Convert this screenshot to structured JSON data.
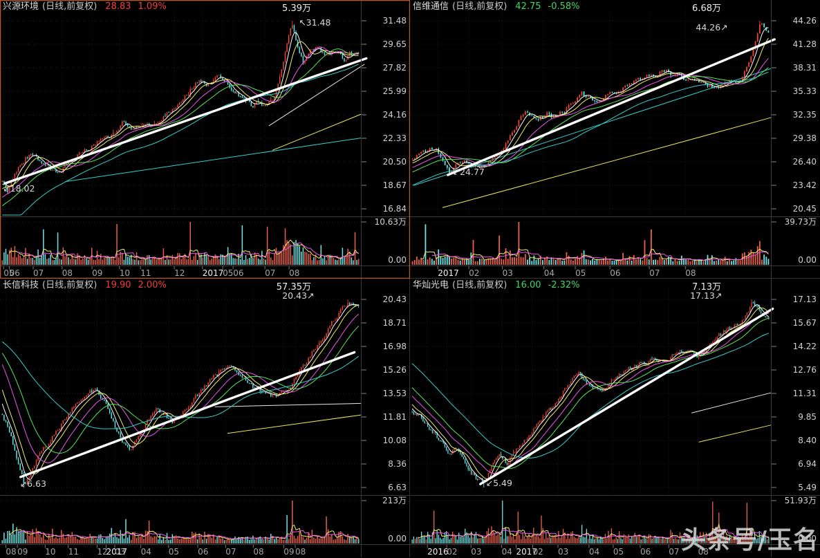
{
  "watermark": {
    "text": "头条号/玉名"
  },
  "colors": {
    "up": "#ef4433",
    "down": "#58e5e5",
    "vol_up": "#e8604a",
    "vol_down": "#6fe3e3",
    "ma5": "#ffffff",
    "ma10": "#f2ef6a",
    "ma20": "#ee55ee",
    "ma30": "#59e859",
    "ma60": "#35cfcf",
    "trend": "#ffffff",
    "grid": "#242424",
    "divider": "#3a3a3a",
    "tick": "#888888",
    "axis_text": "#d2d2d2",
    "month_text": "#a6a6a6",
    "year_text": "#f2f2f2",
    "up_text": "#f63c3c",
    "down_text": "#3fd864",
    "name_text": "#dddddd",
    "selected_border": "#b45a28",
    "panel_border": "#333333",
    "annotation_text": "#d8d8d8",
    "watermark_text": "#d9d9d9"
  },
  "chart_data": [
    {
      "type": "candlestick",
      "name": "兴源环境",
      "mode": "(日线,前复权)",
      "last": "28.83",
      "change": "1.09%",
      "direction": "up",
      "vol_label": "5.39万",
      "selected": true,
      "y_ticks": [
        "31.48",
        "29.65",
        "27.82",
        "25.99",
        "24.16",
        "22.33",
        "20.50",
        "18.67",
        "16.84"
      ],
      "vol_ticks": [
        "10.63万",
        "0.00"
      ],
      "months": [
        [
          "05",
          0.01
        ],
        [
          "06",
          0.026
        ],
        [
          "07",
          0.092
        ],
        [
          "08",
          0.172
        ],
        [
          "09",
          0.255
        ],
        [
          "10",
          0.331
        ],
        [
          "11",
          0.389
        ],
        [
          "12",
          0.483
        ],
        [
          "2017",
          0.561
        ],
        [
          "05",
          0.617
        ],
        [
          "06",
          0.646
        ],
        [
          "07",
          0.734
        ],
        [
          "08",
          0.801
        ]
      ],
      "price_path": [
        [
          0,
          19.0
        ],
        [
          0.015,
          18.3
        ],
        [
          0.04,
          19.8
        ],
        [
          0.065,
          20.8
        ],
        [
          0.09,
          21.1
        ],
        [
          0.115,
          20.3
        ],
        [
          0.14,
          19.9
        ],
        [
          0.165,
          19.8
        ],
        [
          0.19,
          20.5
        ],
        [
          0.215,
          21.1
        ],
        [
          0.24,
          21.5
        ],
        [
          0.265,
          21.9
        ],
        [
          0.29,
          22.3
        ],
        [
          0.315,
          22.6
        ],
        [
          0.34,
          23.7
        ],
        [
          0.36,
          23.2
        ],
        [
          0.385,
          23.1
        ],
        [
          0.41,
          23.4
        ],
        [
          0.44,
          23.8
        ],
        [
          0.47,
          24.4
        ],
        [
          0.5,
          25.2
        ],
        [
          0.53,
          26.2
        ],
        [
          0.55,
          26.8
        ],
        [
          0.575,
          26.5
        ],
        [
          0.6,
          27.2
        ],
        [
          0.625,
          26.9
        ],
        [
          0.65,
          26.1
        ],
        [
          0.675,
          25.4
        ],
        [
          0.7,
          24.9
        ],
        [
          0.72,
          25.2
        ],
        [
          0.74,
          24.7
        ],
        [
          0.765,
          25.7
        ],
        [
          0.785,
          27.8
        ],
        [
          0.8,
          30.0
        ],
        [
          0.813,
          31.1
        ],
        [
          0.828,
          29.7
        ],
        [
          0.845,
          28.2
        ],
        [
          0.865,
          29.1
        ],
        [
          0.885,
          29.5
        ],
        [
          0.905,
          28.6
        ],
        [
          0.925,
          29.0
        ],
        [
          0.945,
          28.9
        ],
        [
          0.96,
          28.4
        ],
        [
          0.975,
          28.9
        ],
        [
          1,
          28.83
        ]
      ],
      "extremes": {
        "high": [
          0.815,
          31.48
        ],
        "low": [
          0.013,
          18.02
        ]
      },
      "annotations": [
        {
          "t": "↖31.48",
          "x": 0.828,
          "y": 37
        },
        {
          "t": "↙18.02",
          "x": 0.008,
          "y": 277
        }
      ],
      "trend": [
        0.015,
        18.83,
        1.015,
        28.55
      ],
      "aux": [
        [
          "#35cfcf",
          0.18,
          18.95,
          1.0,
          22.35
        ],
        [
          "#e8e8e8",
          0.745,
          23.3,
          1.01,
          28.1
        ],
        [
          "#e8e860",
          0.755,
          21.4,
          1.0,
          24.2
        ]
      ]
    },
    {
      "type": "candlestick",
      "name": "信维通信",
      "mode": "(日线,前复权)",
      "last": "42.75",
      "change": "-0.58%",
      "direction": "down",
      "vol_label": "6.68万",
      "selected": false,
      "y_ticks": [
        "44.26",
        "41.28",
        "38.31",
        "35.33",
        "32.35",
        "29.38",
        "26.40",
        "23.42",
        "20.45"
      ],
      "vol_ticks": [
        "39.73万",
        "0.00"
      ],
      "months": [
        [
          "2017",
          0.077
        ],
        [
          "02",
          0.163
        ],
        [
          "03",
          0.256
        ],
        [
          "04",
          0.371
        ],
        [
          "05",
          0.458
        ],
        [
          "06",
          0.554
        ],
        [
          "07",
          0.663
        ],
        [
          "08",
          0.763
        ]
      ],
      "price_path": [
        [
          0,
          27.0
        ],
        [
          0.02,
          27.4
        ],
        [
          0.045,
          27.9
        ],
        [
          0.067,
          28.2
        ],
        [
          0.085,
          26.6
        ],
        [
          0.105,
          25.1
        ],
        [
          0.125,
          26.0
        ],
        [
          0.145,
          26.6
        ],
        [
          0.165,
          25.9
        ],
        [
          0.185,
          25.4
        ],
        [
          0.21,
          26.3
        ],
        [
          0.24,
          27.6
        ],
        [
          0.265,
          29.0
        ],
        [
          0.285,
          30.6
        ],
        [
          0.3,
          31.8
        ],
        [
          0.315,
          32.8
        ],
        [
          0.33,
          32.2
        ],
        [
          0.355,
          31.9
        ],
        [
          0.38,
          32.5
        ],
        [
          0.405,
          32.1
        ],
        [
          0.43,
          33.0
        ],
        [
          0.455,
          34.2
        ],
        [
          0.475,
          35.0
        ],
        [
          0.495,
          34.4
        ],
        [
          0.52,
          34.0
        ],
        [
          0.55,
          34.7
        ],
        [
          0.58,
          35.3
        ],
        [
          0.61,
          36.2
        ],
        [
          0.64,
          36.8
        ],
        [
          0.665,
          37.3
        ],
        [
          0.685,
          37.0
        ],
        [
          0.703,
          38.2
        ],
        [
          0.73,
          37.5
        ],
        [
          0.77,
          36.8
        ],
        [
          0.8,
          36.4
        ],
        [
          0.83,
          36.0
        ],
        [
          0.86,
          35.7
        ],
        [
          0.885,
          36.5
        ],
        [
          0.91,
          36.2
        ],
        [
          0.93,
          37.4
        ],
        [
          0.95,
          39.3
        ],
        [
          0.965,
          41.8
        ],
        [
          0.978,
          43.9
        ],
        [
          1,
          42.75
        ]
      ],
      "extremes": {
        "high": [
          0.975,
          44.26
        ],
        "low": [
          0.105,
          24.77
        ]
      },
      "annotations": [
        {
          "t": "44.26↗",
          "x": 0.792,
          "y": 44
        },
        {
          "t": "↙24.77",
          "x": 0.118,
          "y": 253
        }
      ],
      "trend": [
        0.105,
        24.74,
        1.01,
        41.9
      ],
      "aux": [
        [
          "#35cfcf",
          0.01,
          23.4,
          1.0,
          38.2
        ],
        [
          "#e8e860",
          0.09,
          20.6,
          1.0,
          32.0
        ]
      ]
    },
    {
      "type": "candlestick",
      "name": "长信科技",
      "mode": "(日线,前复权)",
      "last": "19.90",
      "change": "2.00%",
      "direction": "up",
      "vol_label": "57.35万",
      "selected": false,
      "y_ticks": [
        "20.43",
        "18.71",
        "16.98",
        "15.26",
        "13.53",
        "11.81",
        "10.08",
        "8.36",
        "6.63"
      ],
      "vol_ticks": [
        "213万",
        "0.00"
      ],
      "months": [
        [
          "08",
          0.016
        ],
        [
          "09",
          0.048
        ],
        [
          "10",
          0.125
        ],
        [
          "11",
          0.189
        ],
        [
          "12",
          0.269
        ],
        [
          "2017",
          0.294
        ],
        [
          "03",
          0.318
        ],
        [
          "04",
          0.39
        ],
        [
          "05",
          0.467
        ],
        [
          "06",
          0.548
        ],
        [
          "07",
          0.625
        ],
        [
          "08",
          0.702
        ],
        [
          "09",
          0.786
        ],
        [
          "08",
          0.818
        ]
      ],
      "price_path": [
        [
          0,
          12.0
        ],
        [
          0.02,
          10.8
        ],
        [
          0.042,
          8.8
        ],
        [
          0.062,
          6.9
        ],
        [
          0.08,
          7.7
        ],
        [
          0.1,
          8.9
        ],
        [
          0.12,
          9.5
        ],
        [
          0.15,
          10.7
        ],
        [
          0.18,
          11.8
        ],
        [
          0.21,
          12.7
        ],
        [
          0.24,
          13.4
        ],
        [
          0.262,
          13.9
        ],
        [
          0.283,
          13.1
        ],
        [
          0.3,
          12.1
        ],
        [
          0.32,
          10.9
        ],
        [
          0.342,
          9.8
        ],
        [
          0.362,
          9.4
        ],
        [
          0.385,
          10.5
        ],
        [
          0.41,
          11.6
        ],
        [
          0.435,
          12.3
        ],
        [
          0.458,
          11.9
        ],
        [
          0.478,
          11.4
        ],
        [
          0.5,
          11.9
        ],
        [
          0.53,
          12.9
        ],
        [
          0.558,
          13.7
        ],
        [
          0.585,
          14.5
        ],
        [
          0.612,
          15.1
        ],
        [
          0.632,
          15.6
        ],
        [
          0.655,
          15.1
        ],
        [
          0.678,
          14.6
        ],
        [
          0.7,
          14.1
        ],
        [
          0.725,
          13.7
        ],
        [
          0.75,
          13.3
        ],
        [
          0.775,
          13.3
        ],
        [
          0.8,
          13.9
        ],
        [
          0.825,
          14.7
        ],
        [
          0.85,
          15.7
        ],
        [
          0.875,
          16.7
        ],
        [
          0.9,
          17.7
        ],
        [
          0.925,
          18.7
        ],
        [
          0.95,
          19.6
        ],
        [
          0.968,
          20.2
        ],
        [
          0.982,
          20.0
        ],
        [
          1,
          19.9
        ]
      ],
      "extremes": {
        "high": [
          0.968,
          20.43
        ],
        "low": [
          0.062,
          6.63
        ]
      },
      "annotations": [
        {
          "t": "20.43↗",
          "x": 0.782,
          "y": 29
        },
        {
          "t": "↙6.63",
          "x": 0.055,
          "y": 301
        }
      ],
      "trend": [
        0.057,
        7.4,
        0.982,
        16.55
      ],
      "aux": [
        [
          "#e8e8e8",
          0.595,
          12.55,
          1.0,
          12.8
        ],
        [
          "#e8e860",
          0.63,
          10.6,
          1.0,
          11.95
        ]
      ]
    },
    {
      "type": "candlestick",
      "name": "华灿光电",
      "mode": "(日线,前复权)",
      "last": "16.00",
      "change": "-2.32%",
      "direction": "down",
      "vol_label": "7.13万",
      "selected": false,
      "y_ticks": [
        "17.13",
        "15.67",
        "14.22",
        "12.76",
        "11.31",
        "9.85",
        "8.40",
        "6.94",
        "5.49"
      ],
      "vol_ticks": [
        "51.93万",
        "0.00"
      ],
      "months": [
        [
          "2016",
          0.048
        ],
        [
          "02",
          0.102
        ],
        [
          "03",
          0.169
        ],
        [
          "04",
          0.254
        ],
        [
          "2017",
          0.294
        ],
        [
          "02",
          0.34
        ],
        [
          "03",
          0.41
        ],
        [
          "04",
          0.496
        ],
        [
          "05",
          0.563
        ],
        [
          "06",
          0.638
        ],
        [
          "07",
          0.717
        ],
        [
          "08",
          0.798
        ]
      ],
      "price_path": [
        [
          0,
          10.3
        ],
        [
          0.025,
          9.8
        ],
        [
          0.055,
          9.0
        ],
        [
          0.085,
          8.2
        ],
        [
          0.105,
          7.6
        ],
        [
          0.125,
          7.9
        ],
        [
          0.145,
          7.1
        ],
        [
          0.165,
          6.4
        ],
        [
          0.185,
          5.9
        ],
        [
          0.205,
          5.8
        ],
        [
          0.225,
          6.8
        ],
        [
          0.245,
          7.4
        ],
        [
          0.265,
          7.0
        ],
        [
          0.285,
          7.6
        ],
        [
          0.31,
          8.3
        ],
        [
          0.335,
          9.0
        ],
        [
          0.36,
          9.6
        ],
        [
          0.385,
          10.3
        ],
        [
          0.4,
          10.6
        ],
        [
          0.42,
          11.3
        ],
        [
          0.445,
          12.1
        ],
        [
          0.465,
          12.6
        ],
        [
          0.5,
          11.6
        ],
        [
          0.53,
          11.4
        ],
        [
          0.555,
          12.0
        ],
        [
          0.58,
          12.4
        ],
        [
          0.61,
          12.8
        ],
        [
          0.64,
          13.1
        ],
        [
          0.665,
          13.3
        ],
        [
          0.684,
          13.4
        ],
        [
          0.71,
          13.2
        ],
        [
          0.73,
          13.6
        ],
        [
          0.755,
          13.9
        ],
        [
          0.78,
          14.1
        ],
        [
          0.8,
          13.6
        ],
        [
          0.82,
          13.9
        ],
        [
          0.845,
          14.6
        ],
        [
          0.875,
          15.1
        ],
        [
          0.9,
          15.4
        ],
        [
          0.924,
          15.9
        ],
        [
          0.945,
          16.4
        ],
        [
          0.955,
          16.9
        ],
        [
          0.975,
          16.4
        ],
        [
          1,
          16.0
        ]
      ],
      "extremes": {
        "high": [
          0.952,
          17.13
        ],
        "low": [
          0.203,
          5.49
        ]
      },
      "annotations": [
        {
          "t": "17.13↗",
          "x": 0.776,
          "y": 29
        },
        {
          "t": "↙5.49",
          "x": 0.21,
          "y": 300
        }
      ],
      "trend": [
        0.195,
        5.7,
        1.005,
        16.55
      ],
      "aux": [
        [
          "#e8e8e8",
          0.78,
          10.1,
          1.0,
          11.35
        ],
        [
          "#e8e860",
          0.8,
          8.3,
          1.0,
          9.35
        ]
      ]
    }
  ]
}
